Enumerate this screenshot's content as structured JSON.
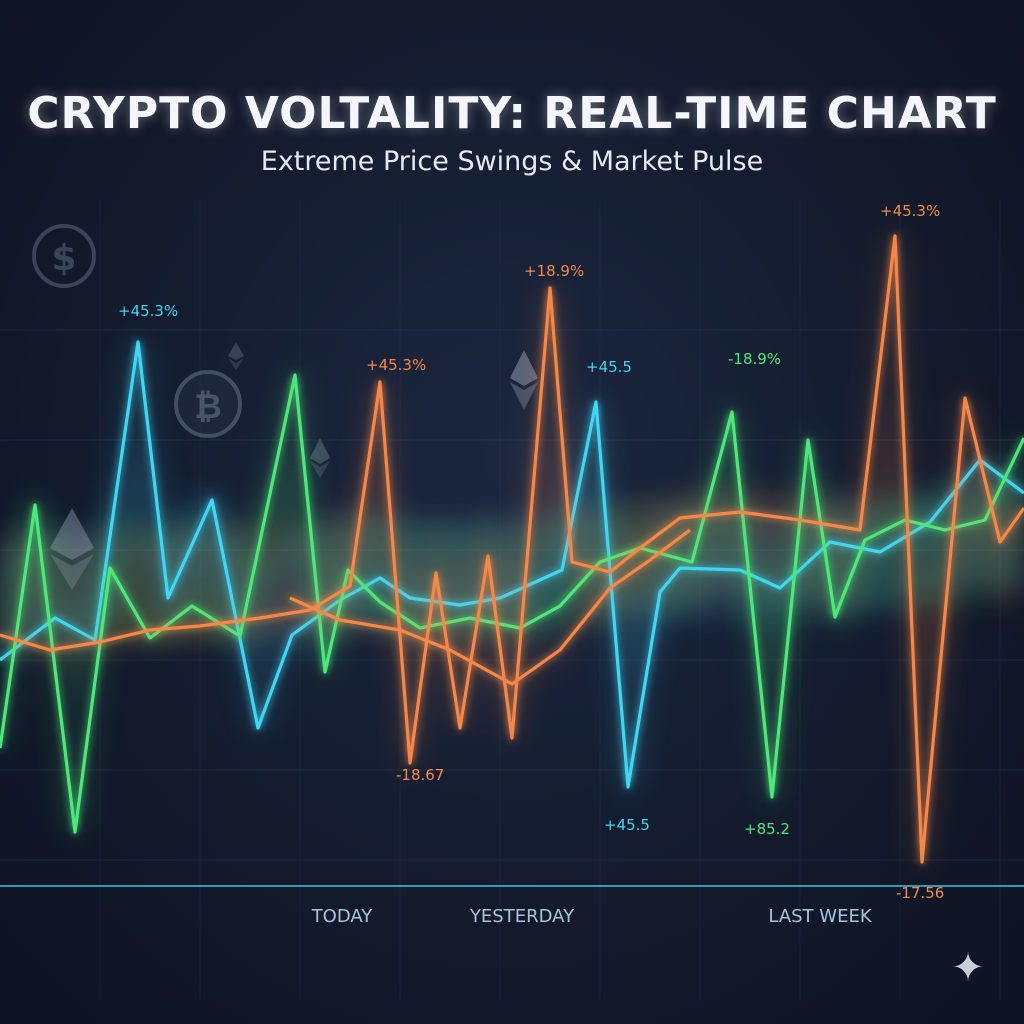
{
  "title": "CRYPTO VOLTALITY: REAL-TIME CHART",
  "subtitle": "Extreme Price Swings & Market Pulse",
  "colors": {
    "background": "#131b2d",
    "cyan": "#3fd6f5",
    "green": "#4ee87a",
    "orange": "#f5874a",
    "grid": "#2a3a55",
    "baseline": "#3fb8d8",
    "axis_text": "#a9c3dc"
  },
  "decor_icons": [
    "dollar-icon",
    "bitcoin-icon",
    "ethereum-icon",
    "sparkle-icon"
  ],
  "chart_data": {
    "type": "line",
    "title": "CRYPTO VOLTALITY: REAL-TIME CHART",
    "subtitle": "Extreme Price Swings & Market Pulse",
    "xlabel": "",
    "ylabel": "",
    "x_tick_labels": [
      "TODAY",
      "YESTERDAY",
      "LAST WEEK"
    ],
    "grid": true,
    "legend": "none",
    "style": "glowing neon lines, illustrative (values not drawn to a readable scale)",
    "series": [
      {
        "color": "#3fd6f5",
        "points": [
          [
            0,
            660
          ],
          [
            55,
            618
          ],
          [
            95,
            640
          ],
          [
            138,
            342
          ],
          [
            168,
            598
          ],
          [
            212,
            500
          ],
          [
            258,
            728
          ],
          [
            292,
            635
          ],
          [
            340,
            600
          ],
          [
            380,
            578
          ],
          [
            410,
            598
          ],
          [
            460,
            605
          ],
          [
            500,
            598
          ],
          [
            562,
            570
          ],
          [
            596,
            402
          ],
          [
            628,
            787
          ],
          [
            660,
            592
          ],
          [
            680,
            568
          ],
          [
            740,
            570
          ],
          [
            780,
            588
          ],
          [
            830,
            542
          ],
          [
            880,
            552
          ],
          [
            930,
            522
          ],
          [
            980,
            460
          ],
          [
            1024,
            493
          ]
        ]
      },
      {
        "color": "#4ee87a",
        "points": [
          [
            0,
            748
          ],
          [
            35,
            505
          ],
          [
            75,
            832
          ],
          [
            110,
            568
          ],
          [
            150,
            638
          ],
          [
            192,
            606
          ],
          [
            240,
            636
          ],
          [
            295,
            375
          ],
          [
            325,
            672
          ],
          [
            348,
            570
          ],
          [
            380,
            602
          ],
          [
            420,
            628
          ],
          [
            470,
            618
          ],
          [
            520,
            628
          ],
          [
            560,
            606
          ],
          [
            600,
            562
          ],
          [
            640,
            548
          ],
          [
            692,
            562
          ],
          [
            732,
            412
          ],
          [
            772,
            797
          ],
          [
            808,
            440
          ],
          [
            835,
            617
          ],
          [
            865,
            540
          ],
          [
            905,
            520
          ],
          [
            945,
            530
          ],
          [
            985,
            520
          ],
          [
            1024,
            438
          ]
        ]
      },
      {
        "color": "#f5874a",
        "points": [
          [
            0,
            635
          ],
          [
            50,
            650
          ],
          [
            100,
            642
          ],
          [
            150,
            630
          ],
          [
            200,
            626
          ],
          [
            260,
            618
          ],
          [
            310,
            610
          ],
          [
            350,
            586
          ],
          [
            380,
            382
          ],
          [
            410,
            763
          ],
          [
            436,
            573
          ],
          [
            460,
            728
          ],
          [
            488,
            556
          ],
          [
            512,
            738
          ],
          [
            550,
            288
          ],
          [
            572,
            562
          ],
          [
            610,
            572
          ],
          [
            640,
            548
          ],
          [
            680,
            518
          ],
          [
            740,
            512
          ],
          [
            800,
            520
          ],
          [
            860,
            530
          ],
          [
            895,
            236
          ],
          [
            922,
            862
          ],
          [
            965,
            398
          ],
          [
            1000,
            542
          ],
          [
            1024,
            508
          ]
        ]
      },
      {
        "color": "#f5874a",
        "points": [
          [
            290,
            598
          ],
          [
            340,
            620
          ],
          [
            400,
            630
          ],
          [
            450,
            650
          ],
          [
            512,
            684
          ],
          [
            560,
            650
          ],
          [
            610,
            588
          ],
          [
            650,
            560
          ],
          [
            690,
            530
          ]
        ]
      }
    ],
    "annotations": [
      {
        "text": "+45.3%",
        "color": "#3fd6f5"
      },
      {
        "text": "+45.3%",
        "color": "#f5874a"
      },
      {
        "text": "+18.9%",
        "color": "#f5874a"
      },
      {
        "text": "+45.5",
        "color": "#3fd6f5"
      },
      {
        "text": "-18.9%",
        "color": "#4ee87a"
      },
      {
        "text": "+45.3%",
        "color": "#f5874a"
      },
      {
        "text": "-18.67",
        "color": "#f5874a"
      },
      {
        "text": "+45.5",
        "color": "#3fd6f5"
      },
      {
        "text": "+85.2",
        "color": "#4ee87a"
      },
      {
        "text": "-17.56",
        "color": "#f5874a"
      }
    ]
  }
}
